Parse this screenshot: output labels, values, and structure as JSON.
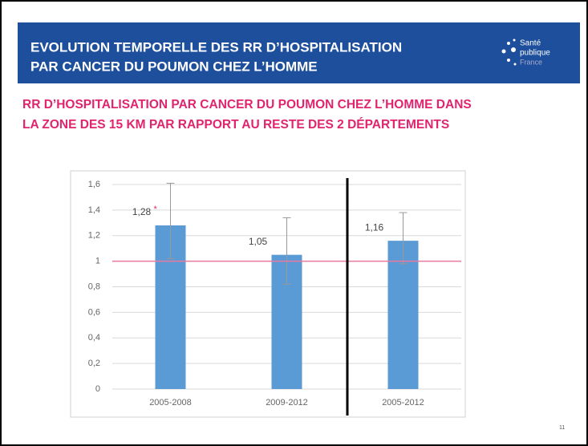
{
  "header": {
    "title_lines": [
      "EVOLUTION TEMPORELLE DES RR D’HOSPITALISATION",
      "PAR CANCER DU POUMON CHEZ L’HOMME"
    ],
    "logo_lines": [
      "Santé",
      "publique",
      "France"
    ]
  },
  "subtitle_lines": [
    "RR D’HOSPITALISATION PAR CANCER DU POUMON CHEZ L’HOMME DANS",
    "LA ZONE DES 15 KM PAR RAPPORT AU RESTE DES 2 DÉPARTEMENTS"
  ],
  "page_number": "11",
  "chart_data": {
    "type": "bar",
    "categories": [
      "2005-2008",
      "2009-2012",
      "2005-2012"
    ],
    "series": [
      {
        "name": "RR",
        "color": "#5b9bd5",
        "values": [
          1.28,
          1.05,
          1.16
        ],
        "value_labels": [
          "1,28",
          "1,05",
          "1,16"
        ],
        "error_low": [
          1.02,
          0.82,
          0.98
        ],
        "error_high": [
          1.61,
          1.34,
          1.38
        ],
        "significance": [
          "*",
          null,
          null
        ]
      }
    ],
    "reference_line": {
      "value": 1,
      "color": "#e8799f"
    },
    "ylim": [
      0,
      1.6
    ],
    "yticks": [
      0,
      {
        "value": 0.2,
        "label": "0,2"
      },
      {
        "value": 0.4,
        "label": "0,4"
      },
      {
        "value": 0.6,
        "label": "0,6"
      },
      {
        "value": 0.8,
        "label": "0,8"
      },
      1,
      {
        "value": 1.2,
        "label": "1,2"
      },
      {
        "value": 1.4,
        "label": "1,4"
      },
      {
        "value": 1.6,
        "label": "1,6"
      }
    ],
    "grid": true
  }
}
